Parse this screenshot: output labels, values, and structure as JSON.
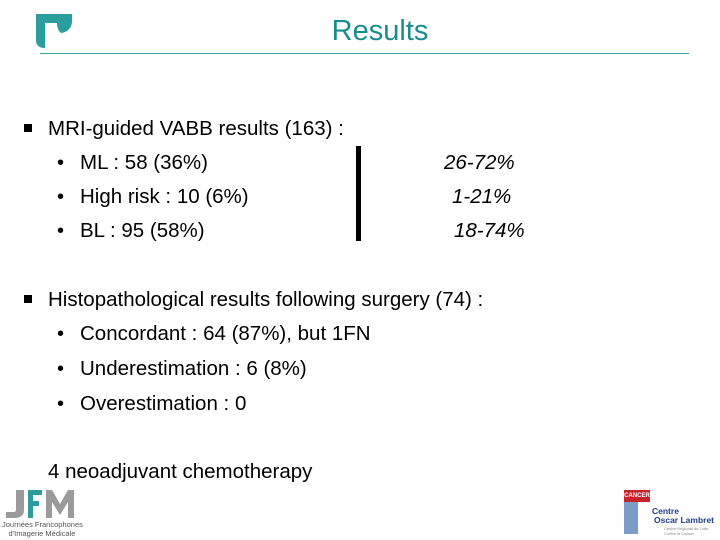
{
  "slide": {
    "title": "Results",
    "section1": {
      "heading": "MRI-guided VABB results  (163) :",
      "items": [
        {
          "label": "ML : 58 (36%)",
          "range": "26-72%"
        },
        {
          "label": "High risk : 10 (6%)",
          "range": "1-21%"
        },
        {
          "label": "BL : 95 (58%)",
          "range": "18-74%"
        }
      ]
    },
    "section2": {
      "heading": "Histopathological results following surgery (74) :",
      "items": [
        "Concordant : 64 (87%), but 1FN",
        "Underestimation : 6 (8%)",
        "Overestimation : 0"
      ]
    },
    "note": "4 neoadjuvant chemotherapy"
  },
  "logos": {
    "jfim": {
      "mark": "JFIM",
      "line1": "Journées Francophones",
      "line2": "d'Imagerie Médicale"
    },
    "centre": {
      "badge": "CANCER",
      "name1": "Centre",
      "name2": "Oscar Lambret",
      "sub1": "Centre Régional de Lutte",
      "sub2": "Contre le Cancer"
    }
  },
  "colors": {
    "accent": "#1a8c8c",
    "logo_teal": "#2a9d9d"
  }
}
